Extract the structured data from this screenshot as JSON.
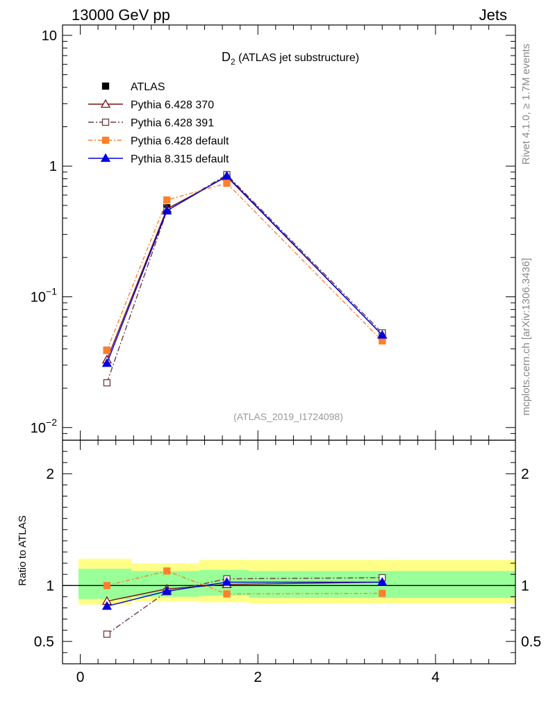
{
  "header": {
    "left": "13000 GeV pp",
    "right": "Jets"
  },
  "side_labels": {
    "top": "Rivet 4.1.0, ≥ 1.7M events",
    "bottom": "mcplots.cern.ch [arXiv:1306.3436]"
  },
  "watermark": "(ATLAS_2019_I1724098)",
  "chart_data": {
    "type": "line",
    "title": {
      "main": "D",
      "sub": "2",
      "rest": " (ATLAS jet substructure)"
    },
    "xlim": [
      -0.2,
      4.9
    ],
    "ylim_main": [
      0.008,
      12
    ],
    "ylim_ratio": [
      0.3,
      2.3
    ],
    "x_ticks": [
      "0",
      "2",
      "4"
    ],
    "y_ticks_main": [
      {
        "base": "10",
        "exp": ""
      },
      {
        "base": "1",
        "exp": ""
      },
      {
        "base": "10",
        "exp": "−1"
      },
      {
        "base": "10",
        "exp": "−2"
      }
    ],
    "y_ticks_ratio": [
      "2",
      "1",
      "0.5"
    ],
    "ratio_ylabel": "Ratio to ATLAS",
    "x": [
      0.3,
      0.975,
      1.65,
      3.4
    ],
    "bins": [
      [
        -0.02,
        0.58
      ],
      [
        0.58,
        1.34
      ],
      [
        1.34,
        1.9
      ],
      [
        1.9,
        4.9
      ]
    ],
    "band_inner": [
      [
        0.88,
        1.15
      ],
      [
        0.9,
        1.13
      ],
      [
        0.91,
        1.14
      ],
      [
        0.89,
        1.13
      ]
    ],
    "band_outer": [
      [
        0.83,
        1.24
      ],
      [
        0.86,
        1.2
      ],
      [
        0.85,
        1.23
      ],
      [
        0.84,
        1.23
      ]
    ],
    "data": {
      "name": "ATLAS",
      "values": [
        0.039,
        0.48,
        0.82,
        0.05
      ],
      "color": "#000000"
    },
    "series": [
      {
        "name": "Pythia 6.428 370",
        "values": [
          0.033,
          0.47,
          0.83,
          0.051
        ],
        "ratio": [
          0.86,
          0.97,
          1.01,
          1.03
        ],
        "color": "#7a1010",
        "marker": "triangle-open",
        "dash": ""
      },
      {
        "name": "Pythia 6.428 391",
        "values": [
          0.022,
          0.455,
          0.86,
          0.053
        ],
        "ratio": [
          0.565,
          0.945,
          1.06,
          1.07
        ],
        "color": "#6b3a3a",
        "marker": "square-open",
        "dash": "8,3,2,3"
      },
      {
        "name": "Pythia 6.428 default",
        "values": [
          0.039,
          0.55,
          0.74,
          0.046
        ],
        "ratio": [
          1.0,
          1.13,
          0.925,
          0.93
        ],
        "color": "#ff7f2a",
        "marker": "square-filled",
        "dash": "6,3,2,3"
      },
      {
        "name": "Pythia 8.315 default",
        "values": [
          0.031,
          0.455,
          0.84,
          0.051
        ],
        "ratio": [
          0.815,
          0.95,
          1.03,
          1.03
        ],
        "color": "#0000e0",
        "marker": "triangle-filled",
        "dash": ""
      }
    ],
    "colors": {
      "inner_band": "#99ff99",
      "outer_band": "#ffff88"
    }
  }
}
